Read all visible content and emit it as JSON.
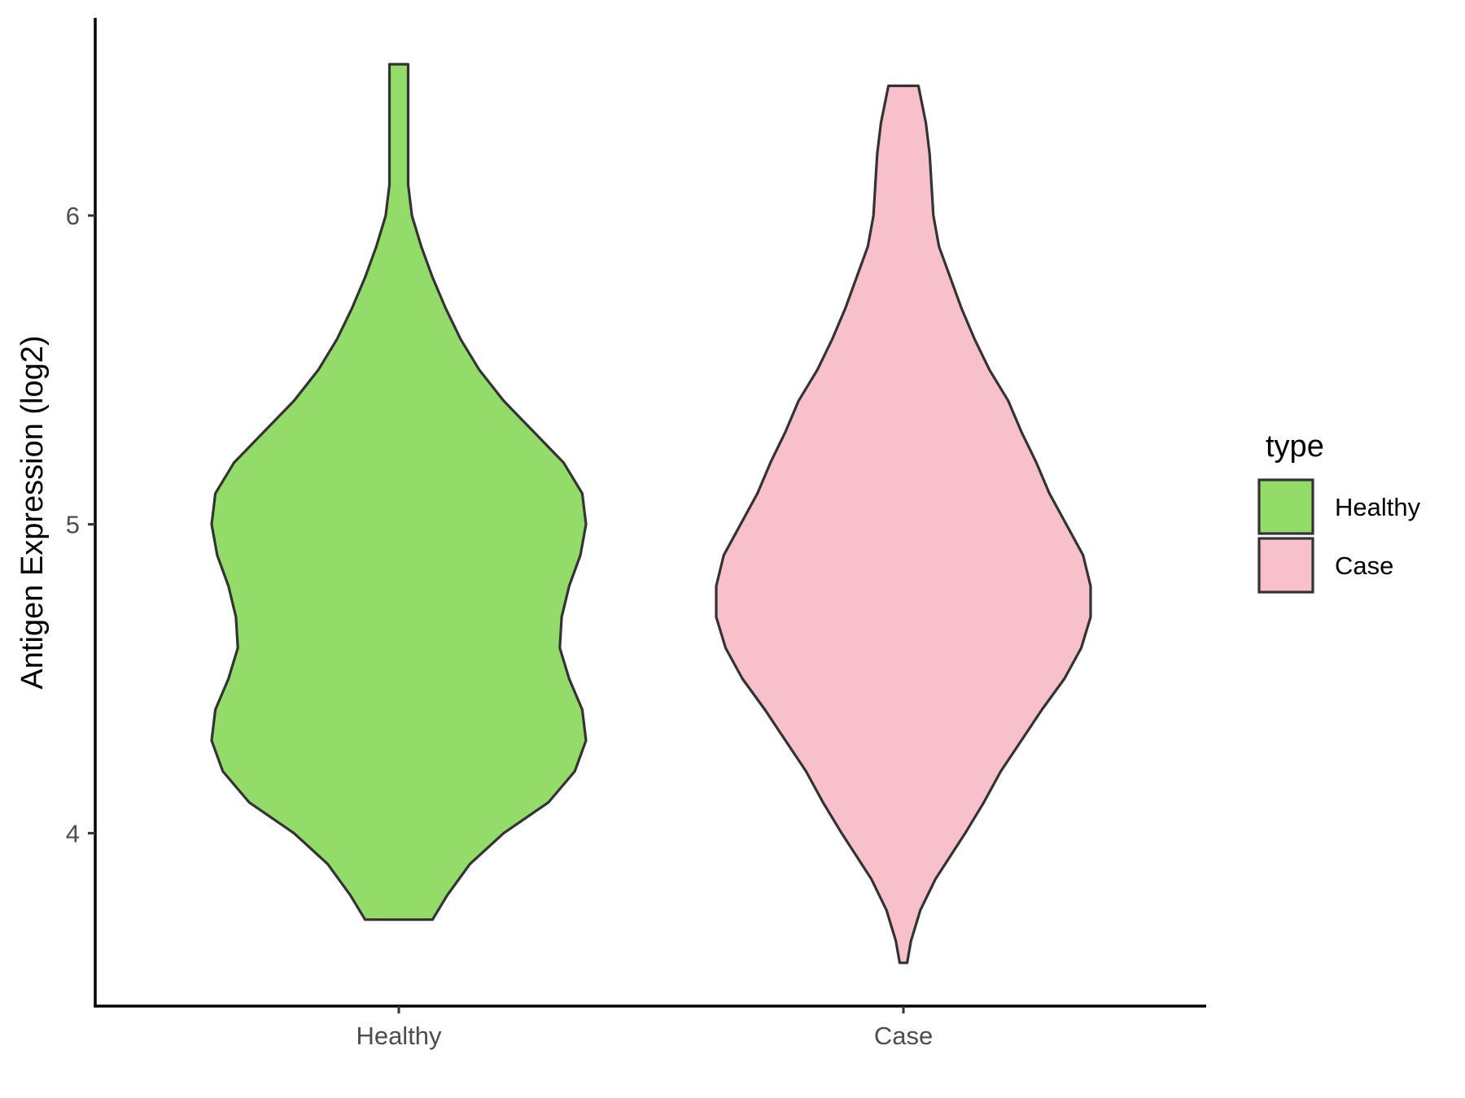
{
  "chart_data": {
    "type": "violin",
    "ylabel": "Antigen Expression (log2)",
    "xlabel": "",
    "categories": [
      "Healthy",
      "Case"
    ],
    "yticks": [
      4,
      5,
      6
    ],
    "ylim": [
      3.44,
      6.64
    ],
    "legend": {
      "title": "type",
      "position": "right",
      "entries": [
        {
          "label": "Healthy",
          "color": "#93DC6A"
        },
        {
          "label": "Case",
          "color": "#F7C0CB"
        }
      ]
    },
    "grid": false,
    "outline_color": "#333333",
    "series": [
      {
        "name": "Healthy",
        "color": "#93DC6A",
        "min": 3.72,
        "max": 6.49,
        "density_profile": [
          [
            3.72,
            0.18
          ],
          [
            3.8,
            0.26
          ],
          [
            3.9,
            0.38
          ],
          [
            4.0,
            0.56
          ],
          [
            4.1,
            0.8
          ],
          [
            4.2,
            0.94
          ],
          [
            4.3,
            1.0
          ],
          [
            4.4,
            0.98
          ],
          [
            4.5,
            0.91
          ],
          [
            4.6,
            0.86
          ],
          [
            4.7,
            0.87
          ],
          [
            4.8,
            0.91
          ],
          [
            4.9,
            0.97
          ],
          [
            5.0,
            1.0
          ],
          [
            5.1,
            0.98
          ],
          [
            5.2,
            0.88
          ],
          [
            5.3,
            0.72
          ],
          [
            5.4,
            0.56
          ],
          [
            5.5,
            0.43
          ],
          [
            5.6,
            0.33
          ],
          [
            5.7,
            0.25
          ],
          [
            5.8,
            0.18
          ],
          [
            5.9,
            0.12
          ],
          [
            6.0,
            0.07
          ],
          [
            6.1,
            0.05
          ],
          [
            6.2,
            0.05
          ],
          [
            6.3,
            0.05
          ],
          [
            6.4,
            0.05
          ],
          [
            6.49,
            0.05
          ]
        ]
      },
      {
        "name": "Case",
        "color": "#F7C0CB",
        "min": 3.58,
        "max": 6.42,
        "density_profile": [
          [
            3.58,
            0.02
          ],
          [
            3.65,
            0.04
          ],
          [
            3.75,
            0.09
          ],
          [
            3.85,
            0.17
          ],
          [
            4.0,
            0.33
          ],
          [
            4.1,
            0.43
          ],
          [
            4.2,
            0.52
          ],
          [
            4.3,
            0.63
          ],
          [
            4.4,
            0.74
          ],
          [
            4.5,
            0.86
          ],
          [
            4.6,
            0.95
          ],
          [
            4.7,
            1.0
          ],
          [
            4.8,
            1.0
          ],
          [
            4.9,
            0.96
          ],
          [
            5.0,
            0.87
          ],
          [
            5.1,
            0.78
          ],
          [
            5.2,
            0.71
          ],
          [
            5.3,
            0.63
          ],
          [
            5.4,
            0.56
          ],
          [
            5.5,
            0.46
          ],
          [
            5.6,
            0.38
          ],
          [
            5.7,
            0.31
          ],
          [
            5.8,
            0.25
          ],
          [
            5.9,
            0.19
          ],
          [
            6.0,
            0.16
          ],
          [
            6.1,
            0.15
          ],
          [
            6.2,
            0.14
          ],
          [
            6.3,
            0.12
          ],
          [
            6.42,
            0.08
          ]
        ]
      }
    ]
  }
}
